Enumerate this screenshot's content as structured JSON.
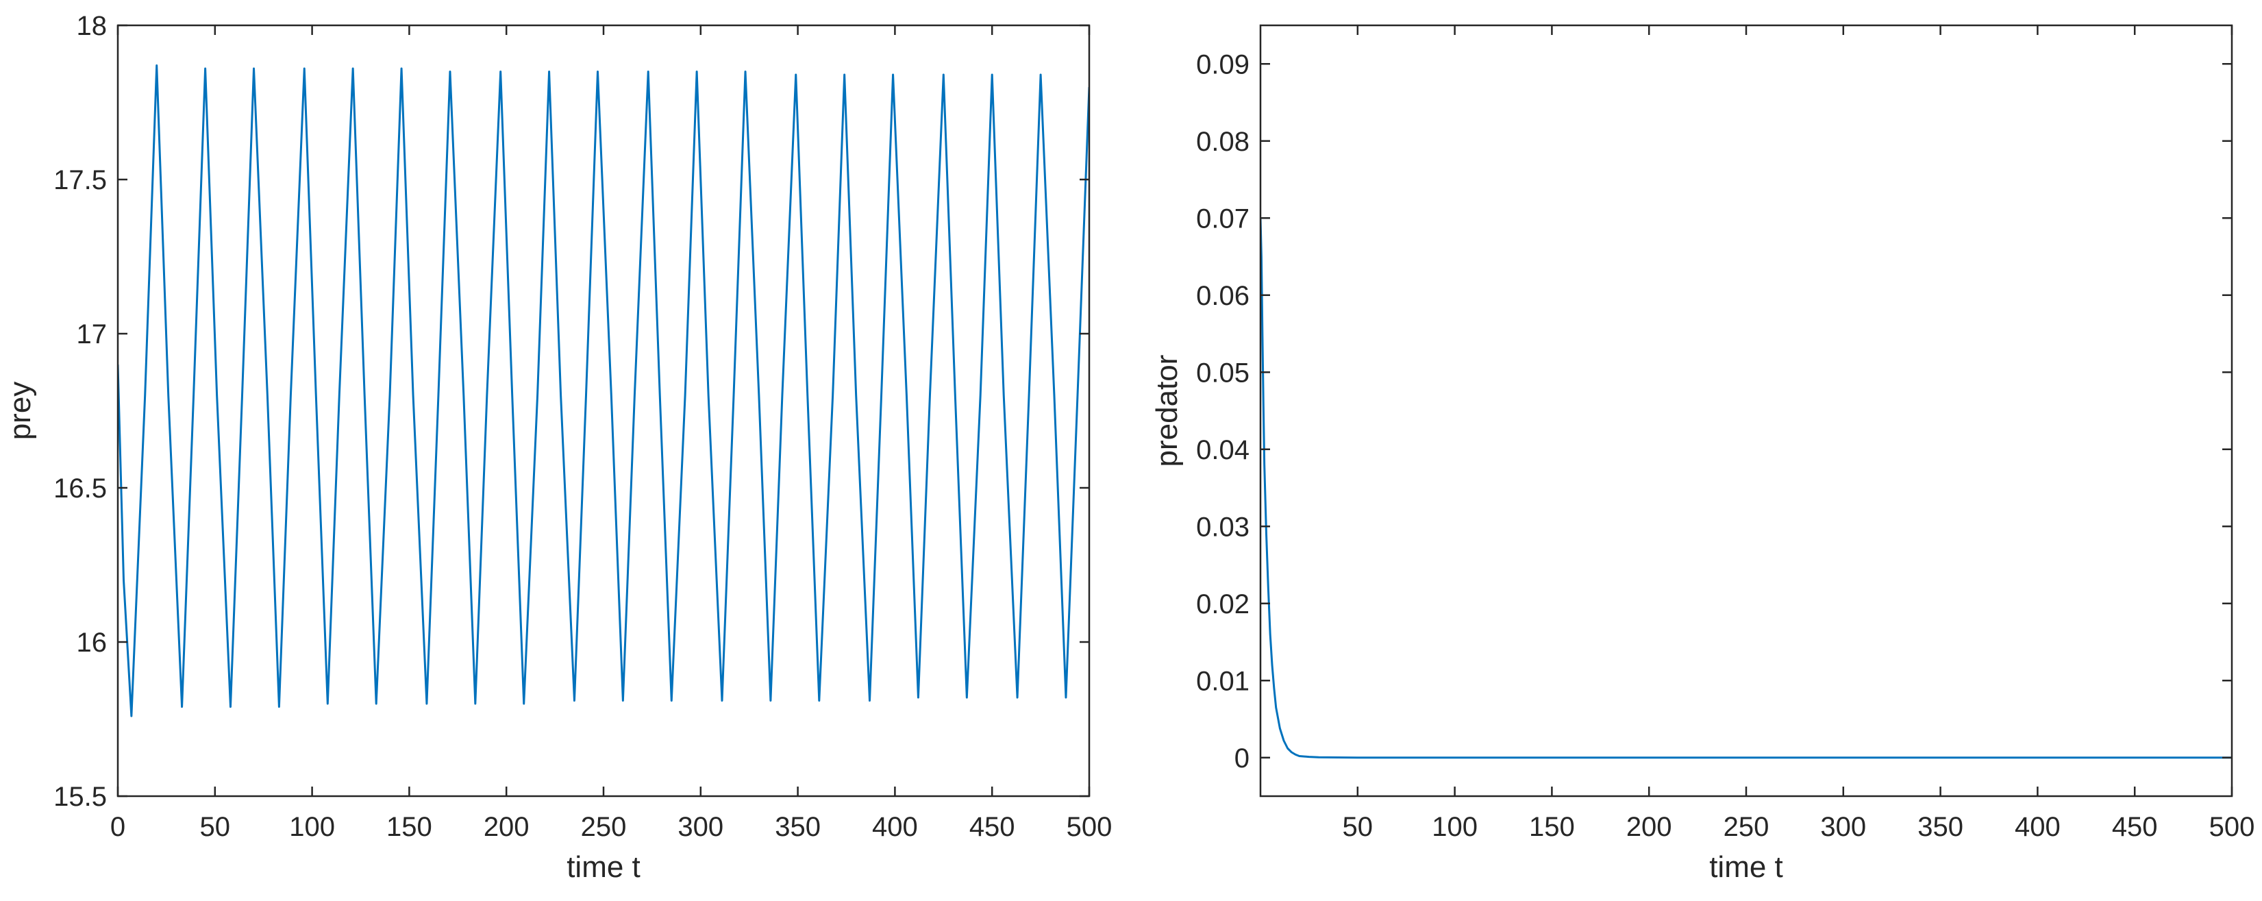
{
  "chart_data": [
    {
      "type": "line",
      "xlabel": "time t",
      "ylabel": "prey",
      "xlim": [
        0,
        500
      ],
      "ylim": [
        15.5,
        18
      ],
      "xticks": [
        0,
        50,
        100,
        150,
        200,
        250,
        300,
        350,
        400,
        450,
        500
      ],
      "xtick_labels": [
        "0",
        "50",
        "100",
        "150",
        "200",
        "250",
        "300",
        "350",
        "400",
        "450",
        "500"
      ],
      "yticks": [
        15.5,
        16,
        16.5,
        17,
        17.5,
        18
      ],
      "ytick_labels": [
        "15.5",
        "16",
        "16.5",
        "17",
        "17.5",
        "18"
      ],
      "grid": false,
      "series": [
        {
          "color": "#0072bd",
          "x": [
            0,
            3,
            7,
            14,
            20,
            26,
            33,
            39,
            45,
            51,
            58,
            64,
            70,
            77,
            83,
            89,
            96,
            102,
            108,
            114,
            121,
            127,
            133,
            140,
            146,
            152,
            159,
            165,
            171,
            178,
            184,
            190,
            197,
            203,
            209,
            216,
            222,
            228,
            235,
            241,
            247,
            254,
            260,
            266,
            273,
            279,
            285,
            292,
            298,
            304,
            311,
            317,
            323,
            330,
            336,
            342,
            349,
            355,
            361,
            368,
            374,
            380,
            387,
            393,
            399,
            406,
            412,
            418,
            425,
            431,
            437,
            444,
            450,
            456,
            463,
            469,
            475,
            482,
            488,
            494,
            500
          ],
          "y": [
            16.9,
            16.2,
            15.76,
            16.8,
            17.87,
            16.8,
            15.79,
            16.8,
            17.86,
            16.8,
            15.79,
            16.8,
            17.86,
            16.8,
            15.79,
            16.8,
            17.86,
            16.8,
            15.8,
            16.8,
            17.86,
            16.8,
            15.8,
            16.8,
            17.86,
            16.8,
            15.8,
            16.8,
            17.85,
            16.8,
            15.8,
            16.8,
            17.85,
            16.8,
            15.8,
            16.8,
            17.85,
            16.8,
            15.81,
            16.8,
            17.85,
            16.8,
            15.81,
            16.8,
            17.85,
            16.8,
            15.81,
            16.8,
            17.85,
            16.8,
            15.81,
            16.8,
            17.85,
            16.8,
            15.81,
            16.8,
            17.84,
            16.8,
            15.81,
            16.8,
            17.84,
            16.8,
            15.81,
            16.8,
            17.84,
            16.8,
            15.82,
            16.8,
            17.84,
            16.8,
            15.82,
            16.8,
            17.84,
            16.8,
            15.82,
            16.8,
            17.84,
            16.8,
            15.82,
            16.8,
            17.8
          ]
        }
      ]
    },
    {
      "type": "line",
      "xlabel": "time t",
      "ylabel": "predator",
      "xlim": [
        0,
        500
      ],
      "ylim": [
        -0.005,
        0.095
      ],
      "xticks": [
        50,
        100,
        150,
        200,
        250,
        300,
        350,
        400,
        450,
        500
      ],
      "xtick_labels": [
        "50",
        "100",
        "150",
        "200",
        "250",
        "300",
        "350",
        "400",
        "450",
        "500"
      ],
      "yticks": [
        0,
        0.01,
        0.02,
        0.03,
        0.04,
        0.05,
        0.06,
        0.07,
        0.08,
        0.09
      ],
      "ytick_labels": [
        "0",
        "0.01",
        "0.02",
        "0.03",
        "0.04",
        "0.05",
        "0.06",
        "0.07",
        "0.08",
        "0.09"
      ],
      "grid": false,
      "series": [
        {
          "color": "#0072bd",
          "x": [
            0,
            0.5,
            1,
            1.5,
            2,
            3,
            4,
            5,
            6,
            7,
            8,
            10,
            12,
            14,
            16,
            18,
            20,
            25,
            30,
            40,
            50,
            100,
            200,
            300,
            400,
            500
          ],
          "y": [
            0.07,
            0.065,
            0.055,
            0.046,
            0.038,
            0.029,
            0.022,
            0.016,
            0.012,
            0.009,
            0.0065,
            0.0038,
            0.0022,
            0.0012,
            0.0007,
            0.0004,
            0.0002,
            0.0001,
            5e-05,
            2e-05,
            0.0,
            0.0,
            0.0,
            0.0,
            0.0,
            0.0
          ]
        }
      ]
    }
  ]
}
